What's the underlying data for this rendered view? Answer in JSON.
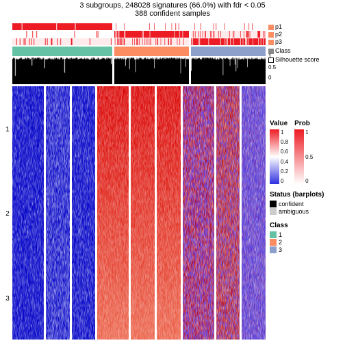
{
  "title": "3 subgroups, 248028 signatures (66.0%) with fdr < 0.05",
  "subtitle": "388 confident samples",
  "colors": {
    "red": "#ed1c24",
    "red_mid": "#f26d6f",
    "white": "#ffffff",
    "blue": "#2e2ee0",
    "blue_mid": "#8b8bf0",
    "black": "#000000",
    "grey": "#cccccc",
    "class1": "#66c2a5",
    "class2": "#fc8d62",
    "class3": "#8da0cb"
  },
  "column_groups": [
    0.4,
    0.3,
    0.3
  ],
  "row_groups": [
    "1",
    "2",
    "3"
  ],
  "annotations": {
    "p1": {
      "label": "p1",
      "pattern": [
        [
          "#ed1c24",
          0.98
        ],
        [
          "#ffffff",
          0.95
        ],
        [
          "#ffffff",
          0.95
        ]
      ]
    },
    "p2": {
      "label": "p2",
      "pattern": [
        [
          "#ffffff",
          0.95
        ],
        [
          "#ed1c24",
          0.95
        ],
        [
          "#ffebeb",
          0.85
        ]
      ]
    },
    "p3": {
      "label": "p3",
      "pattern": [
        [
          "#ffebeb",
          0.85
        ],
        [
          "#ffebeb",
          0.8
        ],
        [
          "#ed1c24",
          0.9
        ]
      ]
    },
    "class": {
      "label": "Class",
      "colors": [
        "#66c2a5",
        "#fc8d62",
        "#8da0cb"
      ]
    },
    "silhouette": {
      "label": "Silhouette score",
      "scale": [
        "1",
        "0.5",
        "0"
      ]
    },
    "annot_swatches": {
      "p": "#fc8d62",
      "class": "#888888",
      "sil": "#ffffff"
    }
  },
  "heatmap": {
    "type": "heatmap",
    "panels": [
      [
        {
          "base": "#2020d0",
          "noise": 0.3,
          "light_streak": 0.1
        },
        {
          "base": "#2020d0",
          "noise": 0.38,
          "light_streak": 0.3
        },
        {
          "base": "#2020d0",
          "noise": 0.35,
          "light_streak": 0.12
        }
      ],
      [
        {
          "base": "#e02828",
          "noise": 0.3,
          "gradient": true
        },
        {
          "base": "#e02828",
          "noise": 0.3,
          "gradient": true
        },
        {
          "base": "#e02828",
          "noise": 0.32,
          "gradient": true
        }
      ],
      [
        {
          "base": "#c84860",
          "noise": 0.55,
          "mix_blue": 0.4
        },
        {
          "base": "#d05050",
          "noise": 0.52,
          "mix_blue": 0.32
        },
        {
          "base": "#9868c8",
          "noise": 0.55,
          "mix_blue": 0.5
        }
      ]
    ]
  },
  "legends": {
    "value": {
      "title": "Value",
      "stops": [
        "#ed1c24",
        "#ffffff",
        "#2e2ee0"
      ],
      "ticks": [
        "1",
        "0.8",
        "0.6",
        "0.4",
        "0.2",
        "0"
      ]
    },
    "prob": {
      "title": "Prob",
      "stops": [
        "#ed1c24",
        "#ffffff"
      ],
      "ticks": [
        "1",
        "0.5",
        "0"
      ]
    },
    "status": {
      "title": "Status (barplots)",
      "items": [
        {
          "label": "confident",
          "color": "#000000"
        },
        {
          "label": "ambiguous",
          "color": "#cccccc"
        }
      ]
    },
    "class": {
      "title": "Class",
      "items": [
        {
          "label": "1",
          "color": "#66c2a5"
        },
        {
          "label": "2",
          "color": "#fc8d62"
        },
        {
          "label": "3",
          "color": "#8da0cb"
        }
      ]
    }
  }
}
